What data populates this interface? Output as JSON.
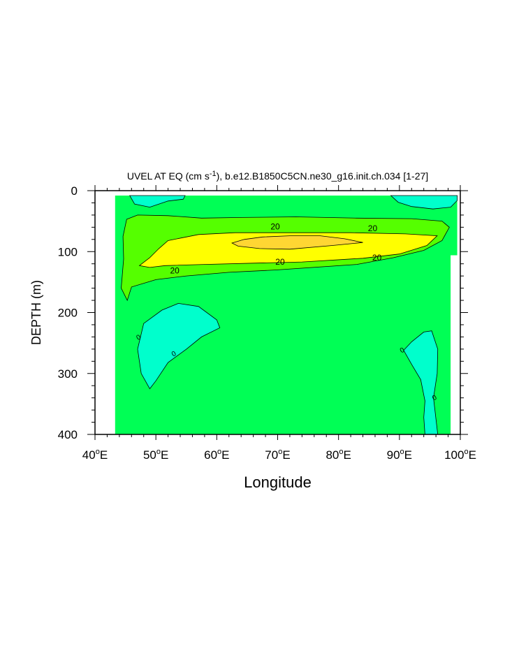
{
  "chart_data": {
    "type": "heatmap",
    "subtype": "filled-contour",
    "title_parts": {
      "before": "UVEL AT EQ (cm s",
      "sup": "-1",
      "after": "), b.e12.B1850C5CN.ne30_g16.init.ch.034 [1-27]"
    },
    "xlabel": "Longitude",
    "ylabel": "DEPTH (m)",
    "xlim": [
      40,
      100
    ],
    "ylim": [
      0,
      400
    ],
    "y_reversed": true,
    "x_ticks": [
      {
        "value": 40,
        "label": "40",
        "sup": "o",
        "suffix": "E"
      },
      {
        "value": 50,
        "label": "50",
        "sup": "o",
        "suffix": "E"
      },
      {
        "value": 60,
        "label": "60",
        "sup": "o",
        "suffix": "E"
      },
      {
        "value": 70,
        "label": "70",
        "sup": "o",
        "suffix": "E"
      },
      {
        "value": 80,
        "label": "80",
        "sup": "o",
        "suffix": "E"
      },
      {
        "value": 90,
        "label": "90",
        "sup": "o",
        "suffix": "E"
      },
      {
        "value": 100,
        "label": "100",
        "sup": "o",
        "suffix": "E"
      }
    ],
    "y_ticks": [
      {
        "value": 0,
        "label": "0"
      },
      {
        "value": 100,
        "label": "100"
      },
      {
        "value": 200,
        "label": "200"
      },
      {
        "value": 300,
        "label": "300"
      },
      {
        "value": 400,
        "label": "400"
      }
    ],
    "colors": {
      "cyan": "#00ffcc",
      "green": "#00ff55",
      "light_green": "#55ff00",
      "yellow": "#ffff00",
      "orange": "#ffd633",
      "line": "#000000"
    },
    "regions": [
      {
        "level": "0-10",
        "color": "green",
        "points": [
          [
            43.3,
            8
          ],
          [
            99.5,
            8
          ],
          [
            99.5,
            106
          ],
          [
            98.4,
            106
          ],
          [
            98.4,
            400
          ],
          [
            43.3,
            400
          ]
        ]
      },
      {
        "level": "<0",
        "color": "cyan",
        "points": [
          [
            45.7,
            8
          ],
          [
            54.8,
            8
          ],
          [
            54.5,
            14
          ],
          [
            52,
            17
          ],
          [
            49,
            27
          ],
          [
            46.5,
            22
          ],
          [
            45.7,
            8
          ]
        ]
      },
      {
        "level": "<0",
        "color": "cyan",
        "points": [
          [
            88.6,
            8
          ],
          [
            99.5,
            8
          ],
          [
            99.5,
            16
          ],
          [
            98.4,
            27
          ],
          [
            95.5,
            30
          ],
          [
            92,
            26
          ],
          [
            89.8,
            19
          ],
          [
            88.6,
            8
          ]
        ]
      },
      {
        "level": "<0",
        "color": "cyan",
        "points": [
          [
            49,
            325
          ],
          [
            47.6,
            300
          ],
          [
            47,
            260
          ],
          [
            48,
            218
          ],
          [
            51,
            196
          ],
          [
            53.7,
            185
          ],
          [
            57,
            190
          ],
          [
            60,
            212
          ],
          [
            60.5,
            225
          ],
          [
            57.5,
            240
          ],
          [
            55,
            260
          ],
          [
            52,
            282
          ],
          [
            50,
            312
          ],
          [
            49,
            325
          ]
        ]
      },
      {
        "level": "<0",
        "color": "cyan",
        "points": [
          [
            90.7,
            262
          ],
          [
            92,
            248
          ],
          [
            94,
            232
          ],
          [
            95.3,
            230
          ],
          [
            96.3,
            260
          ],
          [
            96.2,
            300
          ],
          [
            95.6,
            340
          ],
          [
            96.3,
            400
          ],
          [
            94.2,
            400
          ],
          [
            94,
            372
          ],
          [
            94.2,
            345
          ],
          [
            93.5,
            310
          ],
          [
            92,
            285
          ],
          [
            90.7,
            262
          ]
        ]
      },
      {
        "level": "10-20",
        "color": "light_green",
        "points": [
          [
            45.2,
            47
          ],
          [
            47,
            40
          ],
          [
            52,
            41
          ],
          [
            57.5,
            45
          ],
          [
            64,
            44
          ],
          [
            73,
            43
          ],
          [
            83,
            45
          ],
          [
            92,
            46
          ],
          [
            97,
            50
          ],
          [
            98.2,
            60
          ],
          [
            97,
            82
          ],
          [
            94,
            98
          ],
          [
            89,
            110
          ],
          [
            83,
            121
          ],
          [
            70,
            130
          ],
          [
            62,
            134
          ],
          [
            55,
            140
          ],
          [
            50,
            146
          ],
          [
            46,
            158
          ],
          [
            45.3,
            180
          ],
          [
            44.3,
            160
          ],
          [
            44.7,
            112
          ],
          [
            44.6,
            75
          ],
          [
            45.2,
            47
          ]
        ]
      },
      {
        "level": "20-30",
        "color": "yellow",
        "points": [
          [
            47.3,
            123
          ],
          [
            49,
            110
          ],
          [
            50.5,
            95
          ],
          [
            52,
            82
          ],
          [
            57,
            72
          ],
          [
            63,
            69
          ],
          [
            72,
            69
          ],
          [
            82,
            69
          ],
          [
            91,
            71
          ],
          [
            96.2,
            74
          ],
          [
            94.5,
            90
          ],
          [
            90,
            104
          ],
          [
            84,
            111
          ],
          [
            74,
            117
          ],
          [
            66,
            119
          ],
          [
            58,
            121
          ],
          [
            51.5,
            123
          ],
          [
            49,
            126
          ],
          [
            47.3,
            123
          ]
        ]
      },
      {
        "level": ">30",
        "color": "orange",
        "points": [
          [
            62.5,
            86
          ],
          [
            64.5,
            80
          ],
          [
            67.5,
            76
          ],
          [
            72,
            74
          ],
          [
            77,
            74
          ],
          [
            81,
            79
          ],
          [
            84,
            85
          ],
          [
            79,
            90
          ],
          [
            72,
            96
          ],
          [
            67,
            95
          ],
          [
            63.5,
            91
          ],
          [
            62.5,
            86
          ]
        ]
      }
    ],
    "zero_line_labels": [
      {
        "text": "0",
        "x": 47.1,
        "y": 240
      },
      {
        "text": "0",
        "x": 52.9,
        "y": 267
      },
      {
        "text": "0",
        "x": 90.4,
        "y": 261
      },
      {
        "text": "0",
        "x": 95.7,
        "y": 339
      }
    ],
    "contour_labels": [
      {
        "text": "20",
        "x": 53.1,
        "y": 131
      },
      {
        "text": "20",
        "x": 69.6,
        "y": 59
      },
      {
        "text": "20",
        "x": 70.4,
        "y": 117
      },
      {
        "text": "20",
        "x": 85.6,
        "y": 62
      },
      {
        "text": "20",
        "x": 86.3,
        "y": 110
      }
    ]
  }
}
